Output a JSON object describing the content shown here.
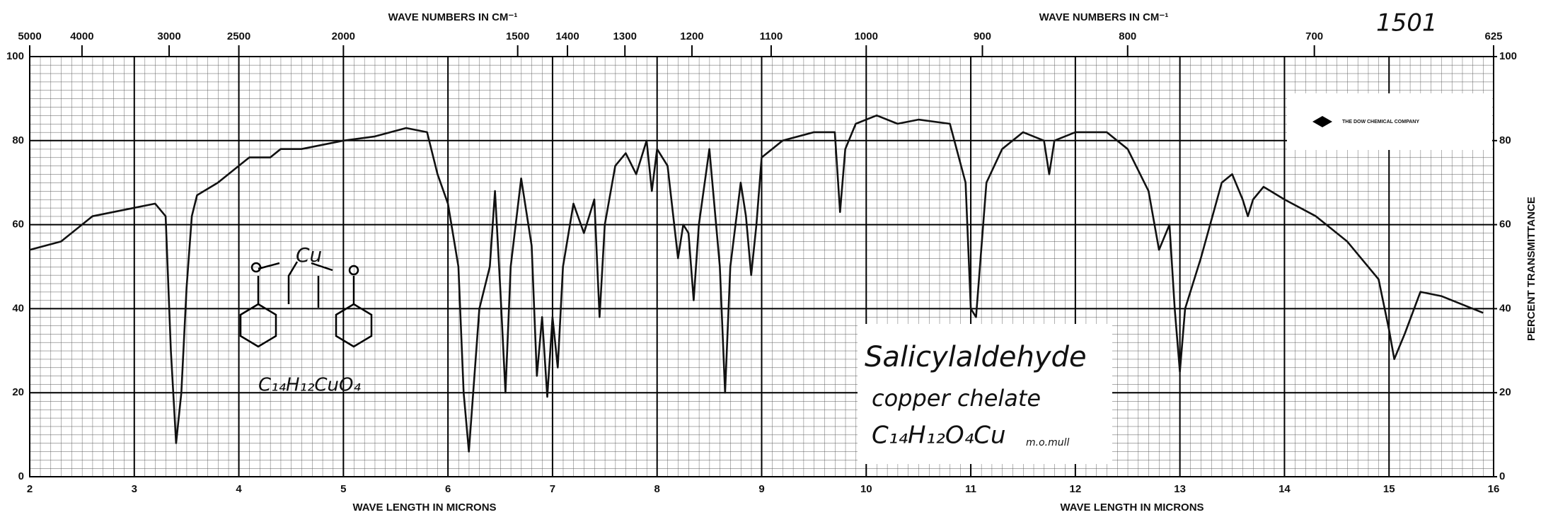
{
  "chart_data": {
    "type": "line",
    "x_label": "WAVE LENGTH IN MICRONS",
    "x2_label": "WAVE NUMBERS IN CM⁻¹",
    "y2_label": "PERCENT TRANSMITTANCE",
    "x": [
      2.0,
      2.3,
      2.6,
      3.0,
      3.2,
      3.3,
      3.35,
      3.4,
      3.45,
      3.5,
      3.55,
      3.6,
      3.8,
      4.0,
      4.1,
      4.3,
      4.4,
      4.6,
      5.0,
      5.3,
      5.6,
      5.8,
      5.9,
      6.0,
      6.1,
      6.15,
      6.2,
      6.3,
      6.4,
      6.45,
      6.5,
      6.55,
      6.6,
      6.7,
      6.8,
      6.85,
      6.9,
      6.95,
      7.0,
      7.05,
      7.1,
      7.2,
      7.3,
      7.35,
      7.4,
      7.45,
      7.5,
      7.6,
      7.7,
      7.8,
      7.9,
      7.95,
      8.0,
      8.1,
      8.2,
      8.25,
      8.3,
      8.35,
      8.4,
      8.5,
      8.6,
      8.65,
      8.7,
      8.8,
      8.85,
      8.9,
      8.95,
      9.0,
      9.2,
      9.5,
      9.7,
      9.75,
      9.8,
      9.9,
      10.1,
      10.3,
      10.5,
      10.8,
      10.95,
      11.0,
      11.05,
      11.15,
      11.3,
      11.5,
      11.7,
      11.75,
      11.8,
      12.0,
      12.3,
      12.5,
      12.7,
      12.8,
      12.9,
      12.95,
      13.0,
      13.05,
      13.2,
      13.4,
      13.5,
      13.6,
      13.65,
      13.7,
      13.8,
      14.0,
      14.3,
      14.6,
      14.9,
      15.0,
      15.05,
      15.15,
      15.3,
      15.5,
      15.9
    ],
    "values": [
      54,
      56,
      62,
      64,
      65,
      62,
      30,
      8,
      20,
      45,
      62,
      67,
      70,
      74,
      76,
      76,
      78,
      78,
      80,
      81,
      83,
      82,
      72,
      65,
      50,
      20,
      6,
      40,
      50,
      68,
      45,
      20,
      50,
      71,
      55,
      24,
      38,
      19,
      38,
      26,
      50,
      65,
      58,
      62,
      66,
      38,
      60,
      74,
      77,
      72,
      80,
      68,
      78,
      74,
      52,
      60,
      58,
      42,
      60,
      78,
      50,
      20,
      50,
      70,
      62,
      48,
      60,
      76,
      80,
      82,
      82,
      63,
      78,
      84,
      86,
      84,
      85,
      84,
      70,
      40,
      38,
      70,
      78,
      82,
      80,
      72,
      80,
      82,
      82,
      78,
      68,
      54,
      60,
      40,
      25,
      40,
      52,
      70,
      72,
      66,
      62,
      66,
      69,
      66,
      62,
      56,
      47,
      35,
      28,
      34,
      44,
      43,
      39
    ],
    "color": "#111111",
    "xlim": [
      2,
      16
    ],
    "xticks": [
      2,
      3,
      4,
      5,
      6,
      7,
      8,
      9,
      10,
      11,
      12,
      13,
      14,
      15,
      16
    ],
    "x2ticks": [
      5000,
      4000,
      3000,
      2500,
      2000,
      1500,
      1400,
      1300,
      1200,
      1100,
      1000,
      900,
      800,
      700,
      625
    ],
    "ylim": [
      0,
      100
    ],
    "yticks": [
      0,
      20,
      40,
      60,
      80,
      100
    ],
    "y2lim": [
      0,
      100
    ],
    "y2ticks": [
      0,
      20,
      40,
      60,
      80,
      100
    ],
    "grid": true,
    "annotations": [
      "1501",
      "Salicylaldehyde",
      "copper chelate",
      "C₁₄H₁₂O₄Cu",
      "m.o.mull",
      "THE DOW CHEMICAL COMPANY",
      "Cu",
      "C₁₄H₁₂CuO₄"
    ]
  }
}
